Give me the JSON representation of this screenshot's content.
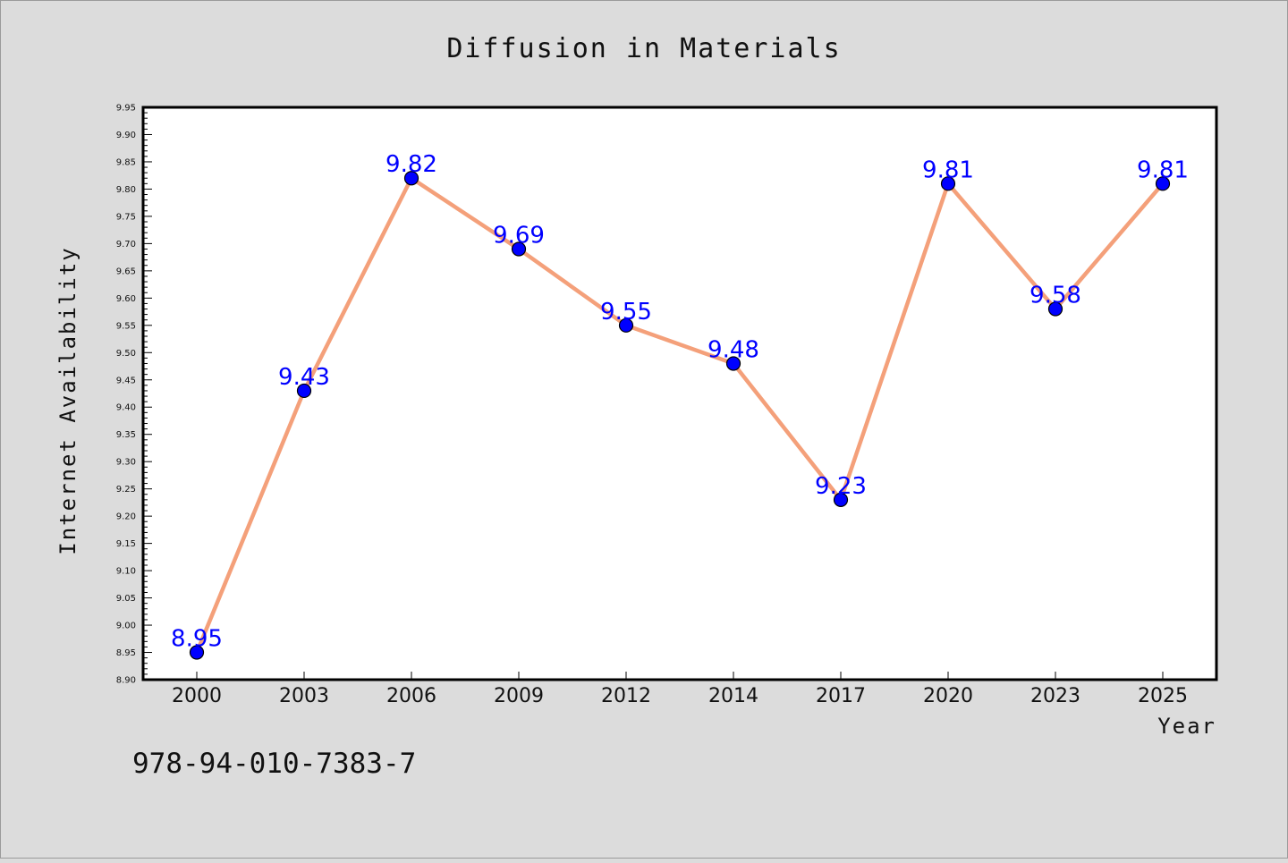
{
  "chart_data": {
    "type": "line",
    "title": "Diffusion in Materials",
    "xlabel": "Year",
    "ylabel": "Internet Availability",
    "categories": [
      "2000",
      "2003",
      "2006",
      "2009",
      "2012",
      "2014",
      "2017",
      "2020",
      "2023",
      "2025"
    ],
    "values": [
      8.95,
      9.43,
      9.82,
      9.69,
      9.55,
      9.48,
      9.23,
      9.81,
      9.58,
      9.81
    ],
    "data_labels": [
      "8.95",
      "9.43",
      "9.82",
      "9.69",
      "9.55",
      "9.48",
      "9.23",
      "9.81",
      "9.58",
      "9.81"
    ],
    "ylim": [
      8.9,
      9.95
    ],
    "ytick_step": 0.05,
    "grid": false,
    "line_color": "#f4a07a",
    "marker_color": "#0000ff",
    "label_color": "#0000ff",
    "plot_background": "#ffffff",
    "figure_background": "#dcdcdc"
  },
  "annotation": "978-94-010-7383-7"
}
